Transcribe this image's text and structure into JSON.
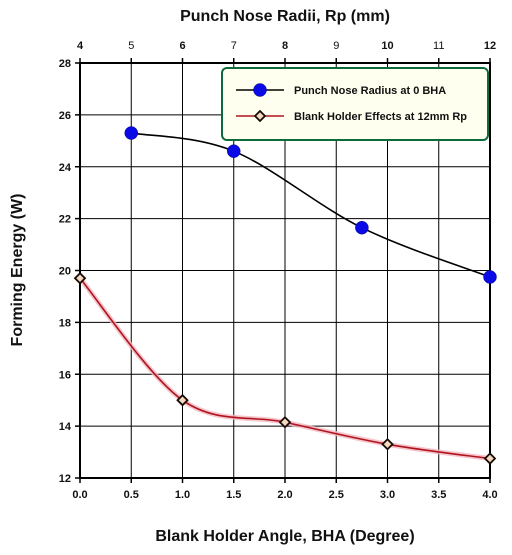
{
  "chart_data": {
    "type": "line",
    "xlabel": "Blank Holder Angle, BHA (Degree)",
    "x2label": "Punch Nose Radii, Rp (mm)",
    "ylabel": "Forming Energy (W)",
    "xlim": [
      0,
      4
    ],
    "x2lim": [
      4,
      12
    ],
    "ylim": [
      12,
      28
    ],
    "x_ticks": [
      "0.0",
      "0.5",
      "1.0",
      "1.5",
      "2.0",
      "2.5",
      "3.0",
      "3.5",
      "4.0"
    ],
    "x2_ticks": [
      "4",
      "5",
      "6",
      "7",
      "8",
      "9",
      "10",
      "11",
      "12"
    ],
    "y_ticks": [
      "12",
      "14",
      "16",
      "18",
      "20",
      "22",
      "24",
      "26",
      "28"
    ],
    "grid": true,
    "legend_position": "top-right",
    "series": [
      {
        "name": "Punch Nose Radius at 0  BHA",
        "axis": "top",
        "marker": "circle",
        "color": "#0a0ae6",
        "line_color": "#000000",
        "x": [
          5,
          7,
          9.5,
          12
        ],
        "y": [
          25.3,
          24.6,
          21.65,
          19.75
        ]
      },
      {
        "name": "Blank Holder Effects at 12mm Rp",
        "axis": "bottom",
        "marker": "diamond",
        "color": "#5a1a0a",
        "line_color": "#b0141e",
        "x": [
          0.0,
          1.0,
          2.0,
          3.0,
          4.0
        ],
        "y": [
          19.7,
          15.0,
          14.15,
          13.3,
          12.75
        ]
      }
    ]
  }
}
